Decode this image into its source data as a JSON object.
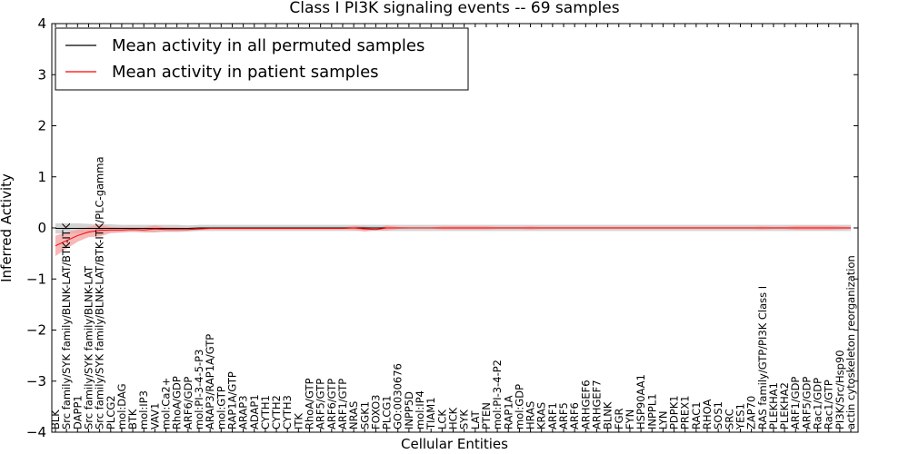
{
  "chart_data": {
    "type": "line",
    "title": "Class I PI3K signaling events -- 69 samples",
    "xlabel": "Cellular Entities",
    "ylabel": "Inferred Activity",
    "ylim": [
      -4,
      4
    ],
    "yticks": [
      4,
      3,
      2,
      1,
      0,
      -1,
      -2,
      -3,
      -4
    ],
    "legend_position": "top-left",
    "grid": false,
    "categories": [
      "BLK",
      "Src family/SYK family/BLNK-LAT/BTK-ITK",
      "DAPP1",
      "Src family/SYK family/BLNK-LAT",
      "Src family/SYK family/BLNK-LAT/BTK-ITK/PLC-gamma",
      "PLCG2",
      "mol:DAG",
      "BTK",
      "mol:IP3",
      "VAV1",
      "mol:Ca2+",
      "RhoA/GDP",
      "ARF6/GDP",
      "mol:PI-3-4-5-P3",
      "ARAP3/RAP1A/GTP",
      "mol:GTP",
      "RAP1A/GTP",
      "ARAP3",
      "ADAP1",
      "CYTH1",
      "CYTH2",
      "CYTH3",
      "ITK",
      "RhoA/GTP",
      "ARF5/GTP",
      "ARF6/GTP",
      "ARF1/GTP",
      "NRAS",
      "SGK1",
      "FOXO3",
      "PLCG1",
      "GO:0030676",
      "INPP5D",
      "mol:IP4",
      "TIAM1",
      "LCK",
      "HCK",
      "SYK",
      "LAT",
      "PTEN",
      "mol:PI-3-4-P2",
      "RAP1A",
      "mol:GDP",
      "HRAS",
      "KRAS",
      "ARF1",
      "ARF5",
      "ARF6",
      "ARHGEF6",
      "ARHGEF7",
      "BLNK",
      "FGR",
      "FYN",
      "HSP90AA1",
      "INPPL1",
      "LYN",
      "PDPK1",
      "PREX1",
      "RAC1",
      "RHOA",
      "SOS1",
      "SRC",
      "YES1",
      "ZAP70",
      "RAS family/GTP/PI3K Class I",
      "PLEKHA1",
      "PLEKHA2",
      "ARF1/GDP",
      "ARF5/GDP",
      "Rac1/GDP",
      "Rac1/GTP",
      "PI3K/Src/Hsp90",
      "actin cytoskeleton reorganization"
    ],
    "series": [
      {
        "name": "Mean activity in all permuted samples",
        "color": "#000000",
        "band_color": "#c8c8c8",
        "values": [
          -0.01,
          -0.01,
          -0.01,
          -0.01,
          -0.01,
          -0.01,
          -0.01,
          -0.01,
          -0.01,
          -0.01,
          -0.01,
          -0.01,
          -0.01,
          0,
          0,
          0,
          0,
          0,
          0,
          0,
          0,
          0,
          0,
          0,
          0,
          0,
          0,
          0,
          0,
          0,
          0,
          0,
          0,
          0,
          0,
          0,
          0,
          0,
          0,
          0,
          0,
          0,
          0,
          0,
          0,
          0,
          0,
          0,
          0,
          0,
          0,
          0,
          0,
          0,
          0,
          0,
          0,
          0,
          0,
          0,
          0,
          0,
          0,
          0,
          0,
          0,
          0,
          0,
          0,
          0,
          0,
          0,
          0
        ],
        "band": [
          0.1,
          0.1,
          0.1,
          0.09,
          0.08,
          0.08,
          0.07,
          0.07,
          0.07,
          0.07,
          0.07,
          0.07,
          0.06,
          0.06,
          0.06,
          0.06,
          0.06,
          0.06,
          0.06,
          0.06,
          0.06,
          0.06,
          0.06,
          0.06,
          0.06,
          0.06,
          0.06,
          0.06,
          0.06,
          0.06,
          0.06,
          0.06,
          0.06,
          0.06,
          0.06,
          0.06,
          0.06,
          0.06,
          0.06,
          0.06,
          0.06,
          0.06,
          0.06,
          0.06,
          0.06,
          0.06,
          0.06,
          0.06,
          0.06,
          0.06,
          0.06,
          0.06,
          0.06,
          0.06,
          0.06,
          0.06,
          0.06,
          0.06,
          0.06,
          0.06,
          0.06,
          0.06,
          0.06,
          0.06,
          0.06,
          0.06,
          0.06,
          0.06,
          0.06,
          0.06,
          0.06,
          0.06,
          0.06
        ]
      },
      {
        "name": "Mean activity in patient samples",
        "color": "#ff0000",
        "band_color": "#f4a0a0",
        "values": [
          -0.35,
          -0.25,
          -0.15,
          -0.08,
          -0.05,
          -0.04,
          -0.04,
          -0.03,
          -0.04,
          -0.02,
          -0.03,
          -0.03,
          -0.03,
          -0.02,
          -0.01,
          -0.01,
          -0.01,
          -0.01,
          -0.01,
          -0.01,
          -0.01,
          -0.01,
          -0.01,
          -0.01,
          -0.01,
          -0.01,
          -0.01,
          0,
          -0.02,
          -0.03,
          0,
          0,
          0,
          0,
          0,
          0,
          0,
          0,
          0,
          0,
          0,
          0,
          0,
          0,
          0,
          0,
          0,
          0,
          0,
          0,
          0,
          0,
          0,
          0,
          0,
          0,
          0,
          0,
          0,
          0,
          0,
          0,
          0,
          0,
          0,
          0,
          0,
          0,
          0,
          0,
          0,
          0,
          0
        ],
        "band": [
          0.2,
          0.16,
          0.12,
          0.1,
          0.12,
          0.06,
          0.05,
          0.04,
          0.05,
          0.07,
          0.04,
          0.04,
          0.03,
          0.03,
          0.02,
          0.02,
          0.02,
          0.02,
          0.02,
          0.02,
          0.02,
          0.02,
          0.02,
          0.02,
          0.02,
          0.02,
          0.02,
          0.04,
          0.05,
          0.02,
          0.05,
          0.02,
          0.01,
          0.01,
          0.01,
          0.03,
          0.03,
          0.03,
          0.03,
          0.03,
          0.02,
          0.02,
          0.02,
          0.03,
          0.02,
          0.02,
          0.02,
          0.02,
          0.02,
          0.02,
          0.02,
          0.02,
          0.02,
          0.02,
          0.02,
          0.02,
          0.02,
          0.02,
          0.02,
          0.02,
          0.02,
          0.02,
          0.02,
          0.02,
          0.03,
          0.02,
          0.02,
          0.04,
          0.04,
          0.04,
          0.04,
          0.03,
          0.02
        ]
      }
    ]
  }
}
